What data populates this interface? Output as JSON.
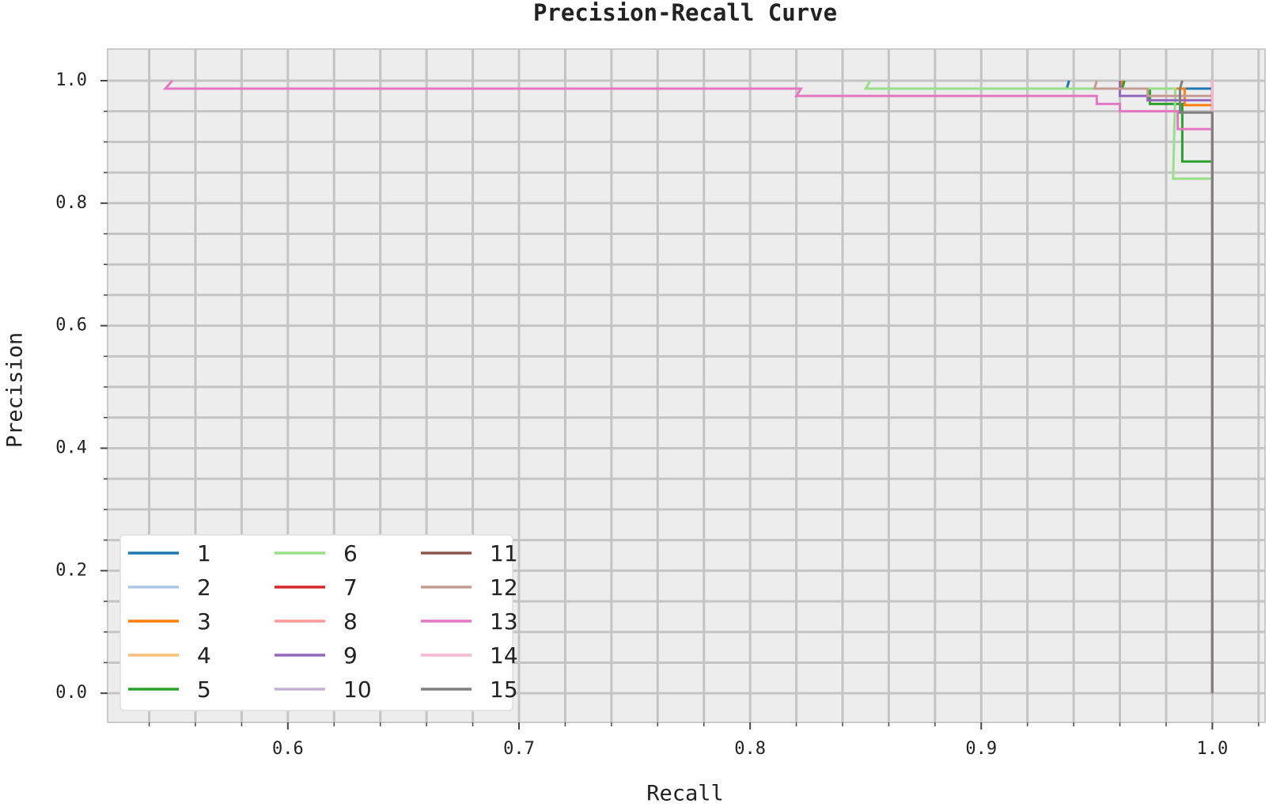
{
  "chart_data": {
    "type": "line",
    "title": "Precision-Recall Curve",
    "x_label": "Recall",
    "y_label": "Precision",
    "xlim": [
      0.522,
      1.0228
    ],
    "ylim": [
      -0.0476,
      1.0516
    ],
    "xticks": [
      0.6,
      0.7,
      0.8,
      0.9,
      {
        "value": 1,
        "label": "1.0"
      }
    ],
    "yticks": [
      {
        "value": 0,
        "label": "0.0"
      },
      0.2,
      0.4,
      0.6,
      0.8,
      {
        "value": 1,
        "label": "1.0"
      }
    ],
    "xminorticks": [
      0.54,
      0.56,
      0.58,
      0.62,
      0.64,
      0.66,
      0.68,
      0.72,
      0.74,
      0.76,
      0.78,
      0.82,
      0.84,
      0.86,
      0.88,
      0.92,
      0.94,
      0.96,
      0.98,
      1.02
    ],
    "yminorticks": [
      0.05,
      0.1,
      0.15,
      0.25,
      0.3,
      0.35,
      0.45,
      0.5,
      0.55,
      0.65,
      0.7,
      0.75,
      0.85,
      0.9,
      0.95
    ],
    "grid": true,
    "legend_position": "lower left",
    "series": [
      {
        "name": "1",
        "color": "#1f77b4",
        "x": [
          0.938,
          0.937,
          1.0,
          1.0
        ],
        "values": [
          1.0,
          0.987,
          0.987,
          0.0
        ]
      },
      {
        "name": "2",
        "color": "#aec7e8",
        "x": [
          1.0,
          1.0
        ],
        "values": [
          1.0,
          0.0
        ]
      },
      {
        "name": "3",
        "color": "#ff7f0e",
        "x": [
          0.961,
          0.96,
          0.988,
          0.988,
          1.0,
          1.0
        ],
        "values": [
          1.0,
          0.987,
          0.987,
          0.96,
          0.96,
          0.0
        ]
      },
      {
        "name": "4",
        "color": "#ffbb78",
        "x": [
          1.0,
          1.0
        ],
        "values": [
          1.0,
          0.0
        ]
      },
      {
        "name": "5",
        "color": "#2ca02c",
        "x": [
          0.962,
          0.961,
          0.973,
          0.973,
          0.987,
          0.987,
          1.0,
          1.0
        ],
        "values": [
          1.0,
          0.987,
          0.987,
          0.962,
          0.962,
          0.868,
          0.868,
          0.0
        ]
      },
      {
        "name": "6",
        "color": "#98df8a",
        "x": [
          0.852,
          0.85,
          0.984,
          0.983,
          1.0,
          1.0
        ],
        "values": [
          1.0,
          0.987,
          0.987,
          0.84,
          0.84,
          0.0
        ]
      },
      {
        "name": "7",
        "color": "#d62728",
        "x": [
          1.0,
          1.0
        ],
        "values": [
          1.0,
          0.0
        ]
      },
      {
        "name": "8",
        "color": "#ff9896",
        "x": [
          1.0,
          1.0
        ],
        "values": [
          1.0,
          0.0
        ]
      },
      {
        "name": "9",
        "color": "#9467bd",
        "x": [
          0.96,
          0.96,
          0.972,
          0.972,
          1.0,
          1.0
        ],
        "values": [
          1.0,
          0.975,
          0.975,
          0.968,
          0.968,
          0.0
        ]
      },
      {
        "name": "10",
        "color": "#c5b0d5",
        "x": [
          1.0,
          1.0
        ],
        "values": [
          1.0,
          0.0
        ]
      },
      {
        "name": "11",
        "color": "#8c564b",
        "x": [
          1.0,
          1.0
        ],
        "values": [
          1.0,
          0.0
        ]
      },
      {
        "name": "12",
        "color": "#c49c94",
        "x": [
          0.95,
          0.949,
          0.972,
          0.972,
          1.0,
          1.0
        ],
        "values": [
          1.0,
          0.987,
          0.987,
          0.975,
          0.975,
          0.0
        ]
      },
      {
        "name": "13",
        "color": "#e377c2",
        "x": [
          0.55,
          0.547,
          0.822,
          0.82,
          0.95,
          0.95,
          0.96,
          0.96,
          0.985,
          0.985,
          1.0,
          1.0
        ],
        "values": [
          1.0,
          0.987,
          0.987,
          0.975,
          0.975,
          0.962,
          0.962,
          0.95,
          0.95,
          0.921,
          0.921,
          0.0
        ]
      },
      {
        "name": "14",
        "color": "#f7b6d2",
        "x": [
          1.0,
          1.0
        ],
        "values": [
          1.0,
          0.95
        ]
      },
      {
        "name": "15",
        "color": "#7f7f7f",
        "x": [
          0.987,
          0.986,
          0.986,
          1.0,
          1.0
        ],
        "values": [
          1.0,
          0.987,
          0.948,
          0.948,
          0.0
        ]
      }
    ]
  }
}
